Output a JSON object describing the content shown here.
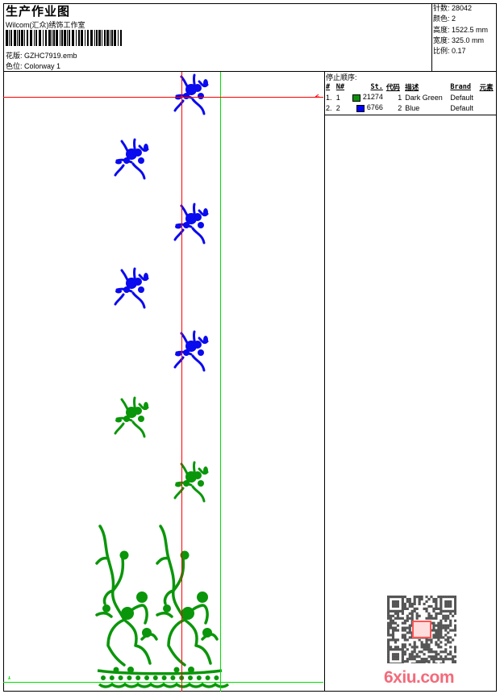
{
  "header": {
    "title": "生产作业图",
    "company": "Wilcom(汇众)绣饰工作室",
    "design_label": "花版:",
    "design_value": "GZHC7919.emb",
    "colorway_label": "色位:",
    "colorway_value": "Colorway 1"
  },
  "info": {
    "stitches_label": "针数:",
    "stitches_value": "28042",
    "colors_label": "颜色:",
    "colors_value": "2",
    "height_label": "高度:",
    "height_value": "1522.5 mm",
    "width_label": "宽度:",
    "width_value": "325.0 mm",
    "scale_label": "比例:",
    "scale_value": "0.17"
  },
  "stop_sequence": {
    "title": "停止顺序:",
    "columns": [
      "#",
      "N#",
      "St.",
      "代码",
      "描述",
      "Brand",
      "元素"
    ],
    "rows": [
      {
        "index": "1.",
        "n": "1",
        "color": "#109010",
        "stitches": "21274",
        "code": "1",
        "description": "Dark Green",
        "brand": "Default"
      },
      {
        "index": "2.",
        "n": "2",
        "color": "#0000ff",
        "stitches": "6766",
        "code": "2",
        "description": "Blue",
        "brand": "Default"
      }
    ]
  },
  "design_colors": {
    "green": "#0a960a",
    "blue": "#0a0aee",
    "guide_red": "#ff0000",
    "guide_green": "#00e000"
  },
  "watermark": {
    "text": "6xiu.com",
    "seal": "以图搜版"
  }
}
